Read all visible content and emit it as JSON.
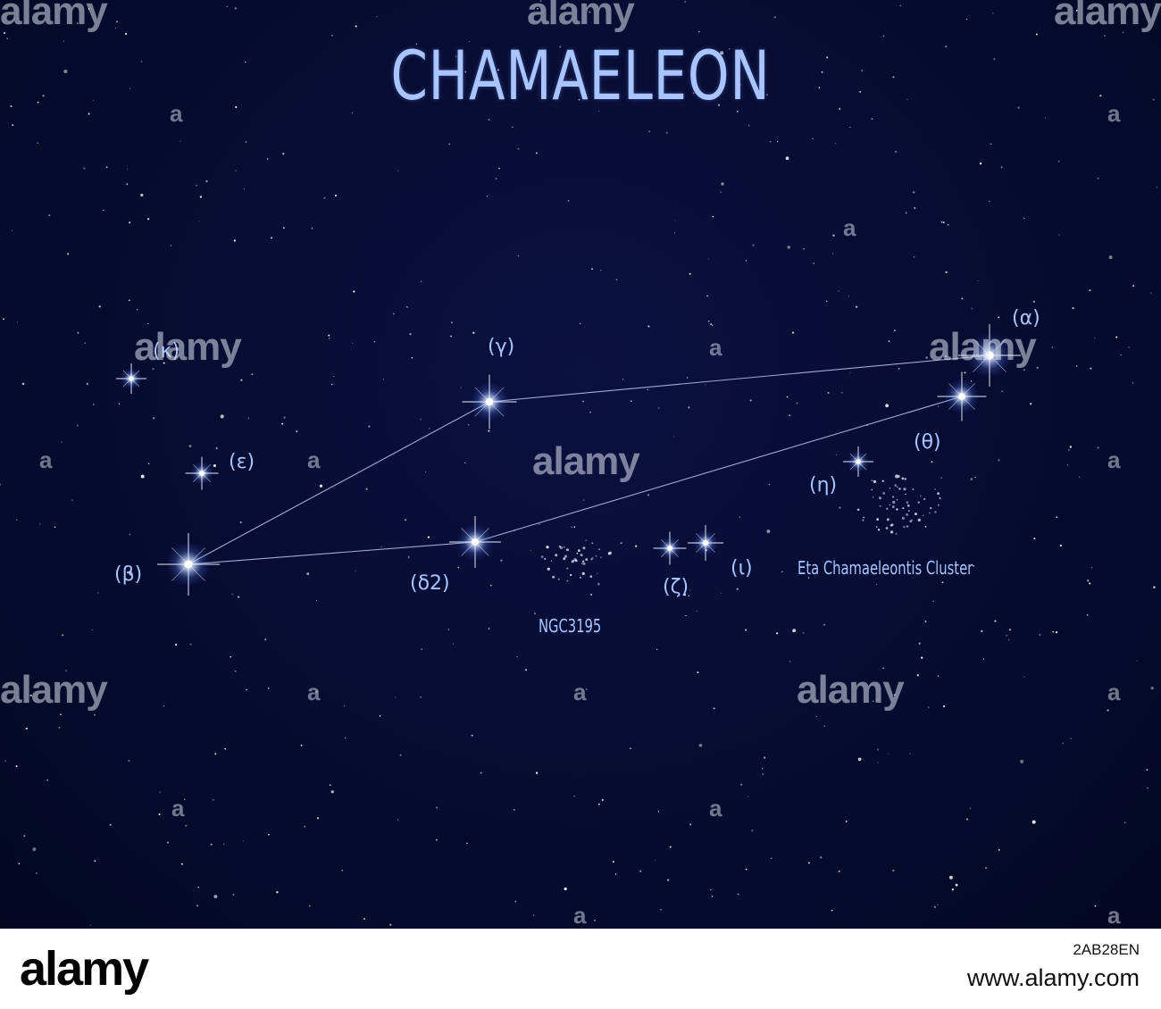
{
  "title": "CHAMAELEON",
  "stars": {
    "kappa": "(κ)",
    "gamma": "(γ)",
    "alpha": "(α)",
    "epsilon": "(ε)",
    "theta": "(θ)",
    "eta": "(η)",
    "beta": "(β)",
    "delta2": "(δ2)",
    "zeta": "(ζ)",
    "iota": "(ι)"
  },
  "objects": {
    "ngc3195": "NGC3195",
    "eta_cluster": "Eta Chamaeleontis Cluster"
  },
  "watermark": {
    "text": "alamy",
    "letter": "a"
  },
  "footer": {
    "logo": "alamy",
    "image_id": "2AB28EN",
    "url": "www.alamy.com"
  },
  "colors": {
    "sky": "#060b2e",
    "label": "#a9c4ff",
    "line": "#b9c9f0"
  }
}
